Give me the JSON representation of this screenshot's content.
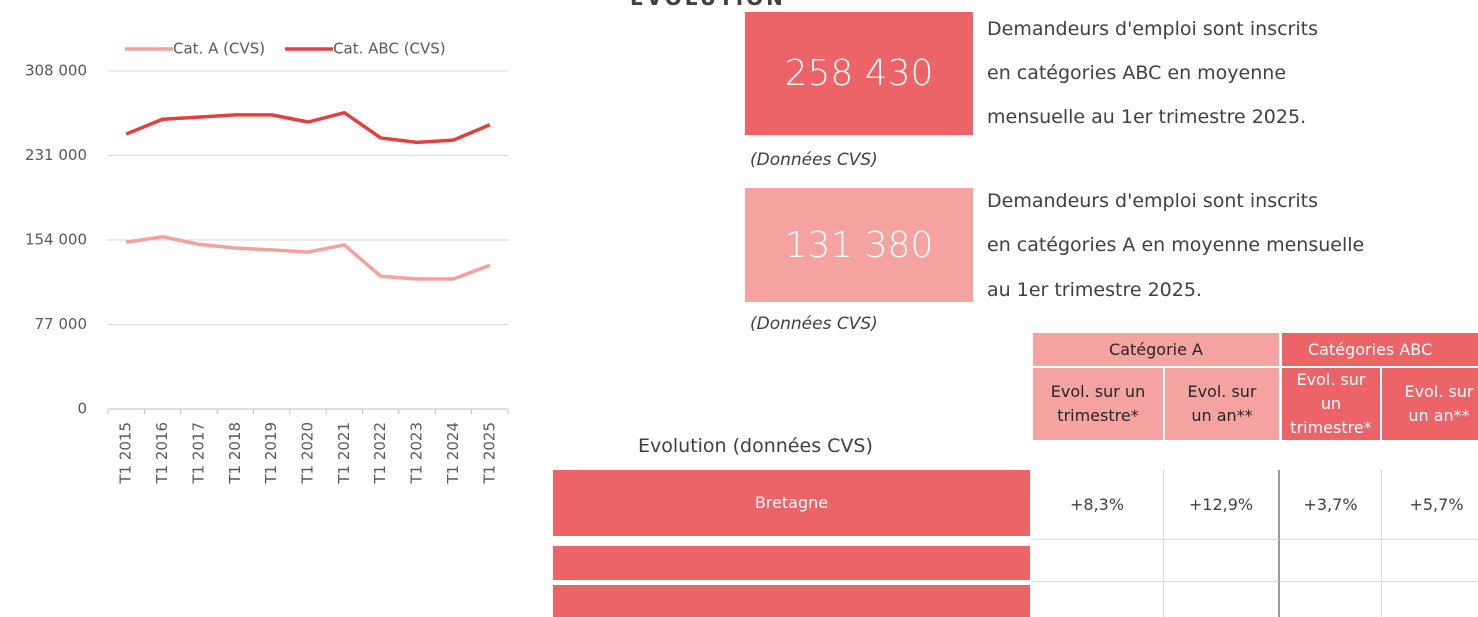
{
  "page_title": "EVOLUTION",
  "chart_data": {
    "type": "line",
    "categories": [
      "T1 2015",
      "T1 2016",
      "T1 2017",
      "T1 2018",
      "T1 2019",
      "T1 2020",
      "T1 2021",
      "T1 2022",
      "T1 2023",
      "T1 2024",
      "T1 2025"
    ],
    "series": [
      {
        "name": "Cat. A (CVS)",
        "color": "#f4a09c",
        "values": [
          152000,
          157000,
          150000,
          146700,
          145000,
          143000,
          149500,
          121000,
          118500,
          118500,
          131000
        ]
      },
      {
        "name": "Cat. ABC (CVS)",
        "color": "#e0403e",
        "values": [
          250500,
          264000,
          266000,
          268000,
          268000,
          261500,
          270000,
          247000,
          243000,
          245000,
          259000
        ]
      }
    ],
    "ylim": [
      0,
      308000
    ],
    "yticks": [
      0,
      {
        "value": 77000,
        "label": "77 000"
      },
      {
        "value": 154000,
        "label": "154 000"
      },
      {
        "value": 231000,
        "label": "231 000"
      },
      {
        "value": 308000,
        "label": "308 000"
      }
    ],
    "grid": true,
    "legend": "top"
  },
  "kpis": [
    {
      "value": "258 430",
      "lines": [
        "Demandeurs d'emploi sont inscrits",
        "en catégories ABC en moyenne",
        "mensuelle au 1er trimestre 2025."
      ],
      "note": "(Données CVS)"
    },
    {
      "value": "131 380",
      "lines": [
        "Demandeurs d'emploi sont inscrits",
        "en catégories A en moyenne mensuelle",
        "au 1er trimestre 2025."
      ],
      "note": "(Données CVS)"
    }
  ],
  "table": {
    "row_header": "Evolution (données CVS)",
    "groups": [
      "Catégorie A",
      "Catégories ABC"
    ],
    "subheaders": [
      "Evol. sur un trimestre*",
      "Evol. sur un an**",
      "Evol. sur un trimestre*",
      "Evol. sur un an**"
    ],
    "rows": [
      {
        "label": "Bretagne",
        "values": [
          "+8,3%",
          "+12,9%",
          "+3,7%",
          "+5,7%"
        ]
      }
    ]
  }
}
